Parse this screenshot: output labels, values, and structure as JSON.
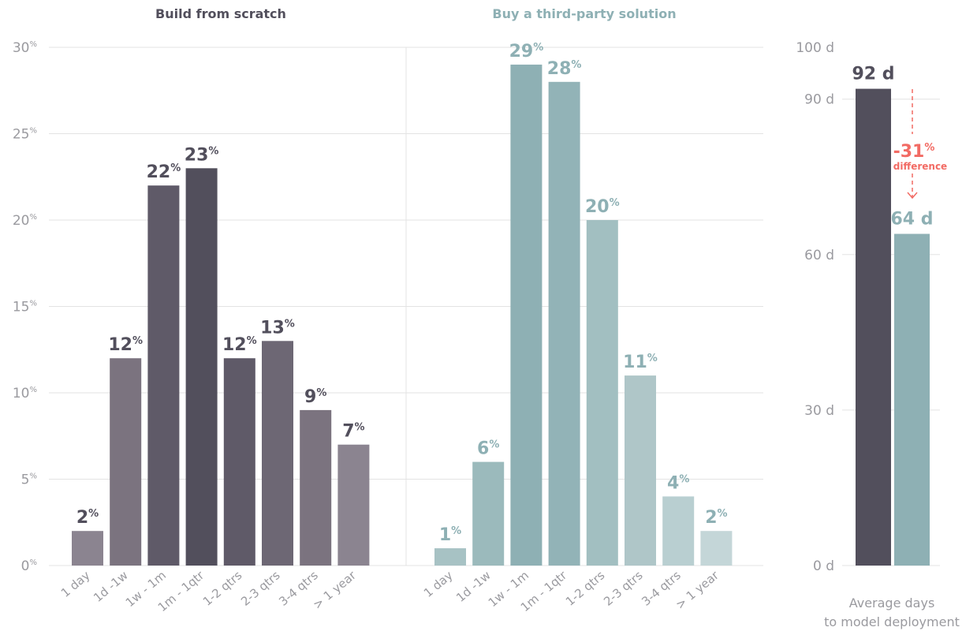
{
  "chart_data": [
    {
      "type": "bar",
      "title": "Build from scratch",
      "categories": [
        "1 day",
        "1d -1w",
        "1w - 1m",
        "1m - 1qtr",
        "1-2 qtrs",
        "2-3 qtrs",
        "3-4 qtrs",
        "> 1 year"
      ],
      "values": [
        2,
        12,
        22,
        23,
        12,
        13,
        9,
        7
      ],
      "value_suffix": "%",
      "ylim": [
        0,
        30
      ],
      "yticks": [
        "0%",
        "5%",
        "10%",
        "15%",
        "20%",
        "25%",
        "30%"
      ],
      "colors": [
        "#8b8490",
        "#7b737f",
        "#5f5a68",
        "#524f5c",
        "#5f5a68",
        "#6d6774",
        "#7b737f",
        "#8b8490"
      ],
      "label_color": "#524f5c",
      "title_color": "#524f5c",
      "grid": true
    },
    {
      "type": "bar",
      "title": "Buy a third-party solution",
      "categories": [
        "1 day",
        "1d -1w",
        "1w - 1m",
        "1m - 1qtr",
        "1-2 qtrs",
        "2-3 qtrs",
        "3-4 qtrs",
        "> 1 year"
      ],
      "values": [
        1,
        6,
        29,
        28,
        20,
        11,
        4,
        2
      ],
      "value_suffix": "%",
      "ylim": [
        0,
        30
      ],
      "colors": [
        "#a7c2c4",
        "#9bbabc",
        "#8eb0b4",
        "#92b3b7",
        "#a2bfc1",
        "#afc6c8",
        "#b9cfd1",
        "#c4d6d8"
      ],
      "label_color": "#8eb0b4",
      "title_color": "#8eb0b4",
      "grid": true
    },
    {
      "type": "bar",
      "categories": [
        "Build from scratch",
        "Buy a third-party solution"
      ],
      "values": [
        92,
        64
      ],
      "value_labels": [
        "92 d",
        "64 d"
      ],
      "ylim": [
        0,
        100
      ],
      "yticks": [
        "0 d",
        "30 d",
        "60 d",
        "90 d",
        "100 d"
      ],
      "colors": [
        "#524f5c",
        "#8eb0b4"
      ],
      "xlabel": "Average days\nto model deployment",
      "annotation": {
        "value": "-31",
        "unit": "%",
        "text": "difference",
        "color": "#f26b64"
      },
      "grid": true
    }
  ]
}
